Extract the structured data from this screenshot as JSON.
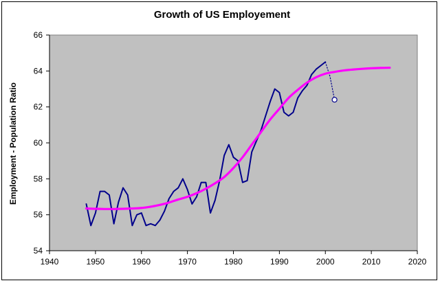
{
  "chart_data": {
    "type": "line",
    "title": "Growth of US Employement",
    "xlabel": "",
    "ylabel": "Employment - Population Ratio",
    "xlim": [
      1940,
      2020
    ],
    "ylim": [
      54,
      66
    ],
    "xticks": [
      1940,
      1950,
      1960,
      1970,
      1980,
      1990,
      2000,
      2010,
      2020
    ],
    "yticks": [
      54,
      56,
      58,
      60,
      62,
      64,
      66
    ],
    "xtick_labels": [
      "1940",
      "1950",
      "1960",
      "1970",
      "1980",
      "1990",
      "2000",
      "2010",
      "2020"
    ],
    "ytick_labels": [
      "54",
      "56",
      "58",
      "60",
      "62",
      "64",
      "66"
    ],
    "grid": false,
    "legend": "none",
    "plot_background": "#c0c0c0",
    "series": [
      {
        "style": "solid",
        "color": "#00008b",
        "x": [
          1948,
          1949,
          1950,
          1951,
          1952,
          1953,
          1954,
          1955,
          1956,
          1957,
          1958,
          1959,
          1960,
          1961,
          1962,
          1963,
          1964,
          1965,
          1966,
          1967,
          1968,
          1969,
          1970,
          1971,
          1972,
          1973,
          1974,
          1975,
          1976,
          1977,
          1978,
          1979,
          1980,
          1981,
          1982,
          1983,
          1984,
          1985,
          1986,
          1987,
          1988,
          1989,
          1990,
          1991,
          1992,
          1993,
          1994,
          1995,
          1996,
          1997,
          1998,
          1999,
          2000
        ],
        "values": [
          56.6,
          55.4,
          56.1,
          57.3,
          57.3,
          57.1,
          55.5,
          56.7,
          57.5,
          57.1,
          55.4,
          56.0,
          56.1,
          55.4,
          55.5,
          55.4,
          55.7,
          56.2,
          56.9,
          57.3,
          57.5,
          58.0,
          57.4,
          56.6,
          57.0,
          57.8,
          57.8,
          56.1,
          56.8,
          57.9,
          59.3,
          59.9,
          59.2,
          59.0,
          57.8,
          57.9,
          59.5,
          60.1,
          60.7,
          61.5,
          62.3,
          63.0,
          62.8,
          61.7,
          61.5,
          61.7,
          62.5,
          62.9,
          63.2,
          63.8,
          64.1,
          64.3,
          64.5
        ]
      },
      {
        "style": "dotted",
        "color": "#00008b",
        "x": [
          2000,
          2001,
          2002
        ],
        "values": [
          64.5,
          63.7,
          62.4
        ]
      },
      {
        "style": "marker",
        "color": "#00008b",
        "x": [
          2002
        ],
        "values": [
          62.4
        ]
      },
      {
        "style": "smooth",
        "color": "#ff00ff",
        "x": [
          1948,
          1950,
          1952,
          1954,
          1956,
          1958,
          1960,
          1962,
          1964,
          1966,
          1968,
          1970,
          1972,
          1974,
          1976,
          1978,
          1980,
          1982,
          1984,
          1986,
          1988,
          1990,
          1992,
          1994,
          1996,
          1998,
          2000,
          2002,
          2004,
          2006,
          2008,
          2010,
          2012,
          2014
        ],
        "values": [
          56.35,
          56.33,
          56.32,
          56.32,
          56.33,
          56.35,
          56.38,
          56.45,
          56.55,
          56.68,
          56.85,
          57.0,
          57.2,
          57.45,
          57.75,
          58.1,
          58.6,
          59.2,
          59.9,
          60.6,
          61.3,
          61.9,
          62.5,
          62.95,
          63.35,
          63.65,
          63.85,
          63.95,
          64.03,
          64.08,
          64.12,
          64.15,
          64.17,
          64.18
        ]
      }
    ]
  }
}
